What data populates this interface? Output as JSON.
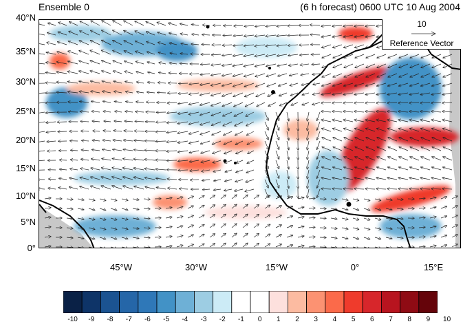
{
  "header": {
    "left_title": "Ensemble 0",
    "right_title": "(6 h forecast) 0600 UTC 10 Aug 2004"
  },
  "map": {
    "lat_labels": [
      "40°N",
      "35°N",
      "30°N",
      "25°N",
      "20°N",
      "15°N",
      "10°N",
      "5°N",
      "0°"
    ],
    "lon_labels": [
      "45°W",
      "30°W",
      "15°W",
      "0°",
      "15°E"
    ]
  },
  "reference_vector": {
    "value": "10",
    "label": "Reference Vector"
  },
  "colorbar": {
    "labels": [
      "-10",
      "-9",
      "-8",
      "-7",
      "-6",
      "-5",
      "-4",
      "-3",
      "-2",
      "-1",
      "0",
      "1",
      "2",
      "3",
      "4",
      "5",
      "6",
      "7",
      "8",
      "9",
      "10"
    ],
    "colors": [
      "#0a2146",
      "#0e3468",
      "#1b5391",
      "#2566a8",
      "#2f78b8",
      "#4292c6",
      "#6eb0d6",
      "#9dcde3",
      "#ccebf6",
      "#ffffff",
      "#ffffff",
      "#fde0dd",
      "#fcbba1",
      "#fc9272",
      "#fb6a4a",
      "#ef3b2c",
      "#d7262b",
      "#b8141f",
      "#8f0b14",
      "#65040a"
    ]
  }
}
